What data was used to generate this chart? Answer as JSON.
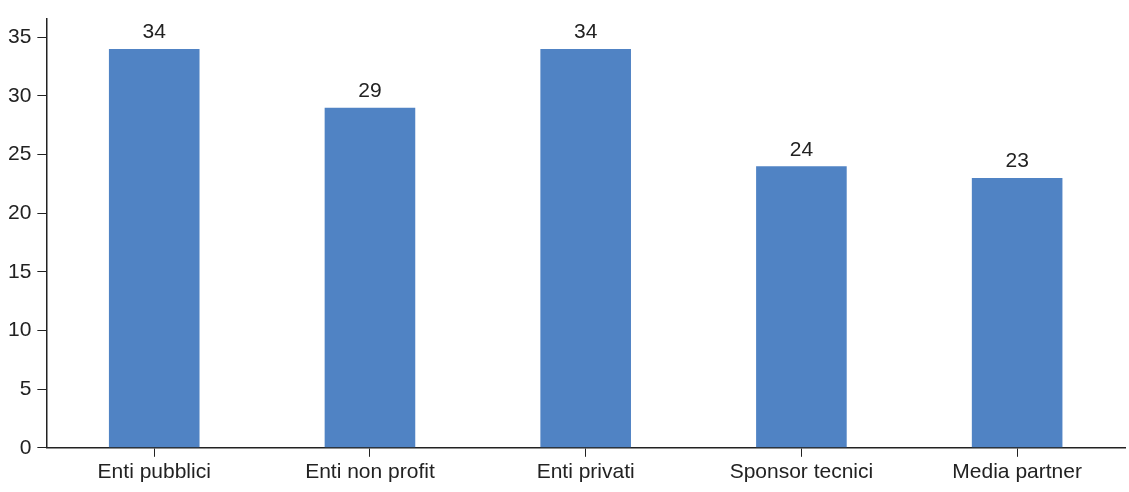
{
  "chart_data": {
    "type": "bar",
    "categories": [
      "Enti pubblici",
      "Enti non profit",
      "Enti privati",
      "Sponsor tecnici",
      "Media partner"
    ],
    "values": [
      34,
      29,
      34,
      24,
      23
    ],
    "color": "#5083c4",
    "ylim": [
      0,
      36.6
    ],
    "yticks": [
      0,
      5,
      10,
      15,
      20,
      25,
      30,
      35
    ],
    "grid": false,
    "legend": false,
    "data_labels": true
  }
}
